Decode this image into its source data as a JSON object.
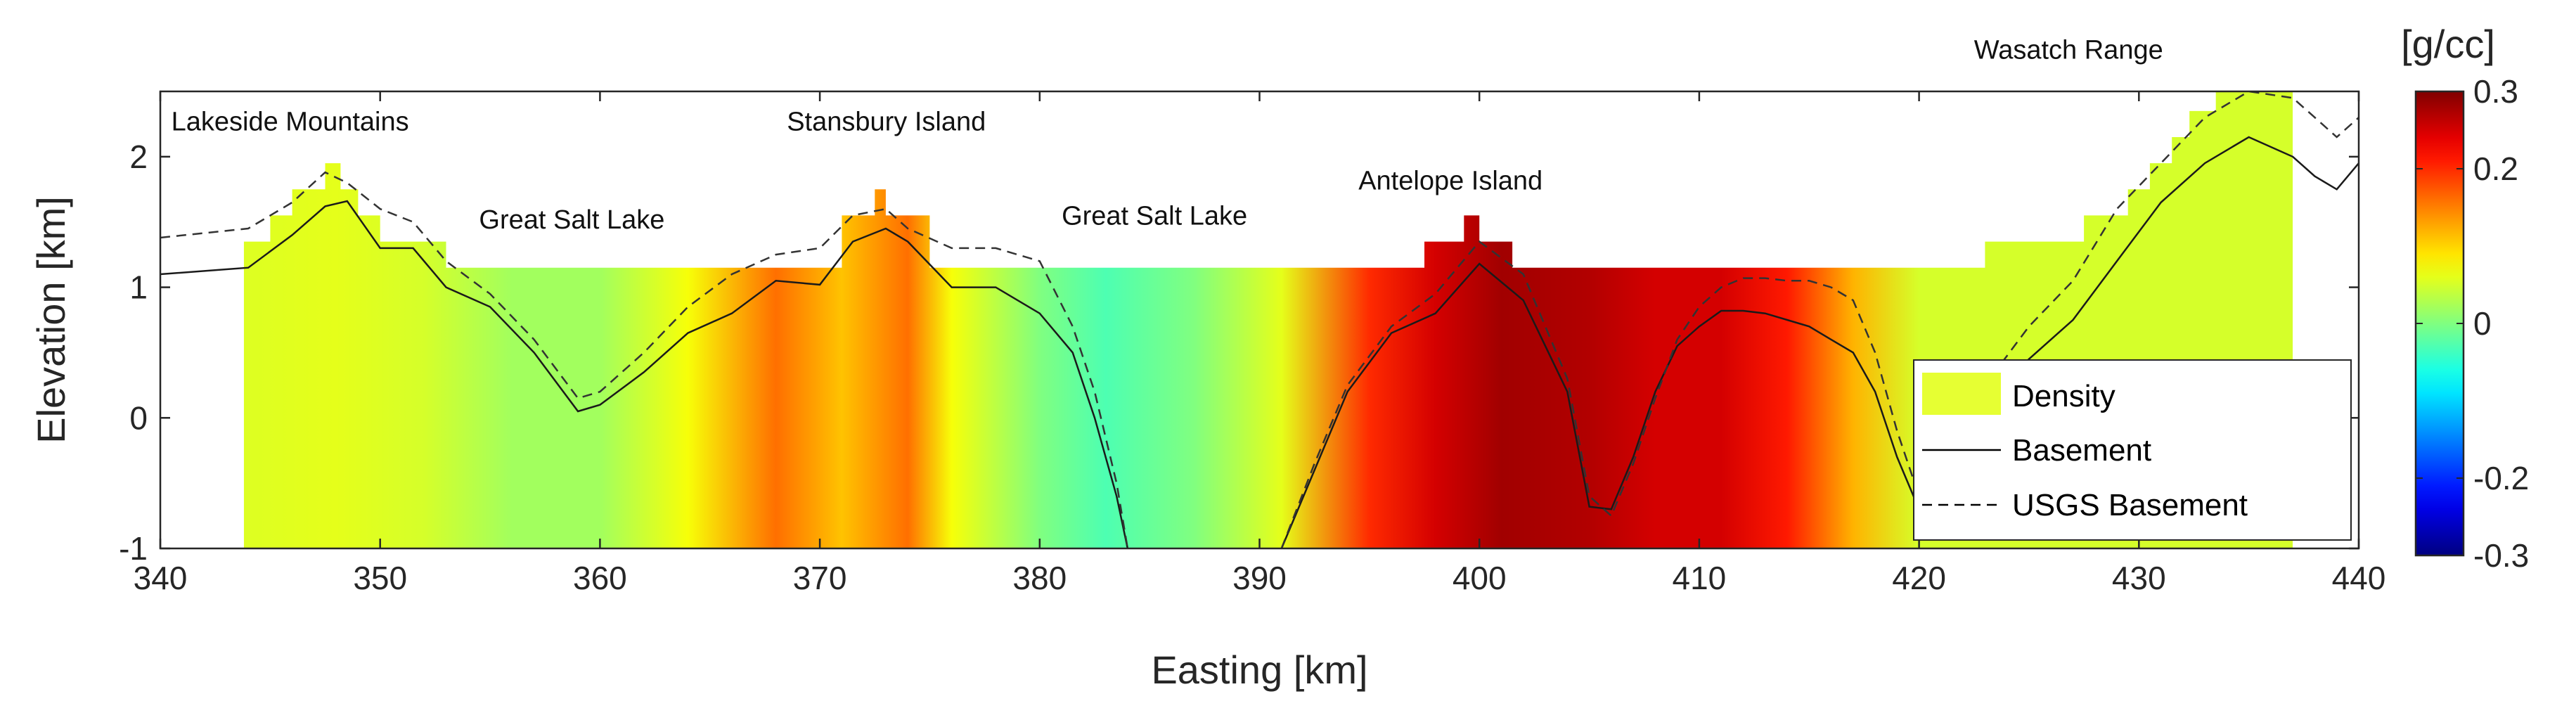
{
  "chart_data": {
    "type": "heatmap",
    "title": "",
    "xlabel": "Easting [km]",
    "ylabel": "Elevation [km]",
    "xlim": [
      340,
      440
    ],
    "ylim": [
      -1,
      2.5
    ],
    "xticks": [
      340,
      350,
      360,
      370,
      380,
      390,
      400,
      410,
      420,
      430,
      440
    ],
    "yticks": [
      -1,
      0,
      1,
      2
    ],
    "grid": false,
    "colorbar": {
      "unit": "[g/cc]",
      "min": -0.3,
      "max": 0.3,
      "ticks": [
        -0.3,
        -0.2,
        0,
        0.2,
        0.3
      ],
      "colormap": "jet"
    },
    "density_model": {
      "x_range": [
        343.8,
        437
      ],
      "base": -1,
      "top_surface": [
        [
          343.8,
          1.35
        ],
        [
          345,
          1.35
        ],
        [
          345,
          1.55
        ],
        [
          346,
          1.55
        ],
        [
          346,
          1.75
        ],
        [
          347.5,
          1.75
        ],
        [
          347.5,
          1.95
        ],
        [
          348.2,
          1.95
        ],
        [
          348.2,
          1.75
        ],
        [
          349,
          1.75
        ],
        [
          349,
          1.55
        ],
        [
          350,
          1.55
        ],
        [
          350,
          1.35
        ],
        [
          353,
          1.35
        ],
        [
          353,
          1.15
        ],
        [
          371,
          1.15
        ],
        [
          371,
          1.55
        ],
        [
          372.5,
          1.55
        ],
        [
          372.5,
          1.75
        ],
        [
          373,
          1.75
        ],
        [
          373,
          1.55
        ],
        [
          375,
          1.55
        ],
        [
          375,
          1.15
        ],
        [
          397.5,
          1.15
        ],
        [
          397.5,
          1.35
        ],
        [
          399.3,
          1.35
        ],
        [
          399.3,
          1.55
        ],
        [
          400,
          1.55
        ],
        [
          400,
          1.35
        ],
        [
          401.5,
          1.35
        ],
        [
          401.5,
          1.15
        ],
        [
          423,
          1.15
        ],
        [
          423,
          1.35
        ],
        [
          427.5,
          1.35
        ],
        [
          427.5,
          1.55
        ],
        [
          429.5,
          1.55
        ],
        [
          429.5,
          1.75
        ],
        [
          430.5,
          1.75
        ],
        [
          430.5,
          1.95
        ],
        [
          431.5,
          1.95
        ],
        [
          431.5,
          2.15
        ],
        [
          432.3,
          2.15
        ],
        [
          432.3,
          2.35
        ],
        [
          433.5,
          2.35
        ],
        [
          433.5,
          2.5
        ],
        [
          437,
          2.5
        ]
      ],
      "density_profile": [
        [
          343.8,
          0.055
        ],
        [
          348,
          0.06
        ],
        [
          352,
          0.05
        ],
        [
          356,
          0.02
        ],
        [
          360,
          0.02
        ],
        [
          364,
          0.07
        ],
        [
          368,
          0.16
        ],
        [
          371,
          0.11
        ],
        [
          374,
          0.16
        ],
        [
          376,
          0.07
        ],
        [
          380,
          0.0
        ],
        [
          383,
          -0.03
        ],
        [
          387,
          0.0
        ],
        [
          391,
          0.06
        ],
        [
          395,
          0.2
        ],
        [
          398,
          0.25
        ],
        [
          401,
          0.28
        ],
        [
          405,
          0.27
        ],
        [
          408,
          0.25
        ],
        [
          411,
          0.25
        ],
        [
          414,
          0.21
        ],
        [
          417,
          0.12
        ],
        [
          420,
          0.05
        ],
        [
          424,
          0.05
        ],
        [
          428,
          0.05
        ],
        [
          432,
          0.05
        ],
        [
          437,
          0.05
        ]
      ]
    },
    "series": [
      {
        "name": "Basement",
        "style": "solid",
        "x": [
          340,
          344,
          346,
          347.5,
          348.5,
          350,
          351.5,
          353,
          355,
          357,
          359,
          360,
          362,
          364,
          366,
          368,
          370,
          371.5,
          373,
          374,
          376,
          378,
          380,
          381.5,
          382.5,
          383.5,
          384,
          391,
          392.5,
          394,
          396,
          398,
          400,
          402,
          404,
          405,
          406,
          407,
          408,
          409,
          410,
          411,
          412,
          413,
          414,
          415,
          416,
          417,
          418,
          419,
          420,
          421
        ],
        "y": [
          1.1,
          1.15,
          1.4,
          1.62,
          1.66,
          1.3,
          1.3,
          1.0,
          0.85,
          0.5,
          0.05,
          0.1,
          0.35,
          0.65,
          0.8,
          1.05,
          1.02,
          1.35,
          1.45,
          1.35,
          1.0,
          1.0,
          0.8,
          0.5,
          0.0,
          -0.6,
          -1.0,
          -1.0,
          -0.4,
          0.2,
          0.65,
          0.8,
          1.18,
          0.9,
          0.2,
          -0.68,
          -0.7,
          -0.3,
          0.2,
          0.55,
          0.7,
          0.82,
          0.82,
          0.8,
          0.75,
          0.7,
          0.6,
          0.5,
          0.2,
          -0.3,
          -0.7,
          -0.9
        ]
      },
      {
        "name": "USGS Basement",
        "style": "dashed",
        "x": [
          340,
          344,
          346,
          347.5,
          348.5,
          350,
          351.5,
          353,
          355,
          357,
          359,
          360,
          362,
          364,
          366,
          368,
          370,
          371.5,
          373,
          374,
          376,
          378,
          380,
          381.5,
          382.5,
          383.5,
          384,
          391,
          392.5,
          394,
          396,
          398,
          400,
          402,
          404,
          405,
          406,
          407,
          408,
          409,
          410,
          411,
          412,
          413,
          414,
          415,
          416,
          417,
          418,
          419,
          420,
          421
        ],
        "y": [
          1.38,
          1.45,
          1.65,
          1.88,
          1.8,
          1.6,
          1.5,
          1.2,
          0.95,
          0.6,
          0.15,
          0.2,
          0.5,
          0.85,
          1.1,
          1.25,
          1.3,
          1.55,
          1.6,
          1.45,
          1.3,
          1.3,
          1.2,
          0.7,
          0.2,
          -0.5,
          -1.0,
          -1.0,
          -0.35,
          0.25,
          0.7,
          0.95,
          1.35,
          1.1,
          0.3,
          -0.6,
          -0.75,
          -0.35,
          0.15,
          0.6,
          0.85,
          1.0,
          1.07,
          1.07,
          1.05,
          1.05,
          1.0,
          0.9,
          0.5,
          -0.1,
          -0.6,
          -0.85
        ]
      }
    ],
    "basement_east": {
      "x": [
        421,
        423,
        425,
        427,
        429,
        431,
        433,
        435,
        437,
        438,
        439,
        440
      ],
      "y_basement": [
        -0.9,
        0.1,
        0.45,
        0.75,
        1.2,
        1.65,
        1.95,
        2.15,
        2.0,
        1.85,
        1.75,
        1.95
      ],
      "y_usgs": [
        -0.85,
        0.25,
        0.7,
        1.05,
        1.6,
        1.95,
        2.3,
        2.5,
        2.45,
        2.3,
        2.15,
        2.3
      ]
    },
    "annotations": [
      "Lakeside Mountains",
      "Great Salt Lake",
      "Stansbury Island",
      "Great Salt Lake",
      "Antelope Island",
      "Wasatch Range"
    ],
    "annotation_positions": [
      [
        340.5,
        2.2
      ],
      [
        354.5,
        1.45
      ],
      [
        368.5,
        2.2
      ],
      [
        381,
        1.48
      ],
      [
        394.5,
        1.75
      ],
      [
        422.5,
        2.75
      ]
    ],
    "legend": {
      "position": "lower-right",
      "entries": [
        "Density",
        "Basement",
        "USGS Basement"
      ]
    }
  }
}
